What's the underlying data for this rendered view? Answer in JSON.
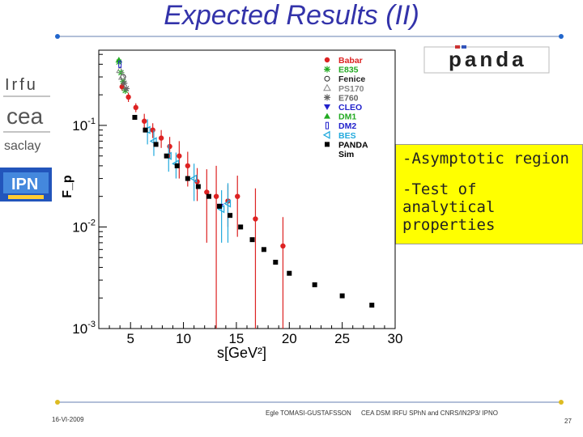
{
  "slide": {
    "title": "Expected Results (II)",
    "footer_date": "16-VI-2009",
    "footer_author": "Egle TOMASI-GUSTAFSSON",
    "footer_affiliation": "CEA DSM IRFU SPhN and CNRS/IN2P3/ IPNO",
    "page_number": "27",
    "accent_color": "#3333aa",
    "rule_color": "#99aacc",
    "dot_color": "#2266cc"
  },
  "logos": {
    "irfu_text": "Irfu",
    "cea_text": "cea",
    "saclay_text": "saclay",
    "ipn_text": "IPN",
    "panda_text": "panda"
  },
  "notes": {
    "line1": "-Asymptotic region",
    "line2": "-Test of analytical properties"
  },
  "chart_data": {
    "type": "scatter",
    "title": "",
    "xlabel": "s[GeV²]",
    "ylabel": "F_p",
    "xlim": [
      2,
      30
    ],
    "ylim": [
      0.001,
      0.55
    ],
    "y_scale": "log",
    "x_ticks": [
      5,
      10,
      15,
      20,
      25,
      30
    ],
    "y_ticks": [
      {
        "value": 0.1,
        "base": "10",
        "exp": "-1"
      },
      {
        "value": 0.01,
        "base": "10",
        "exp": "-2"
      },
      {
        "value": 0.001,
        "base": "10",
        "exp": "-3"
      }
    ],
    "legend_position": "top-right",
    "series": [
      {
        "name": "Babar",
        "color": "#dd2222",
        "marker": "circle-filled",
        "x": [
          4.2,
          4.8,
          5.5,
          6.3,
          7.1,
          7.9,
          8.7,
          9.6,
          10.4,
          11.3,
          12.2,
          13.1,
          14.2,
          15.1,
          16.8,
          19.4
        ],
        "y": [
          0.24,
          0.19,
          0.15,
          0.11,
          0.09,
          0.075,
          0.062,
          0.05,
          0.04,
          0.028,
          0.022,
          0.02,
          0.018,
          0.02,
          0.012,
          0.0065
        ],
        "yerr": [
          0.02,
          0.02,
          0.015,
          0.02,
          0.015,
          0.015,
          0.015,
          0.02,
          0.015,
          0.01,
          0.015,
          0.02,
          0.008,
          0.012,
          0.012,
          0.006
        ]
      },
      {
        "name": "E835",
        "color": "#22aa22",
        "marker": "star",
        "x": [
          3.9,
          4.1,
          4.3,
          4.5
        ],
        "y": [
          0.42,
          0.33,
          0.27,
          0.22
        ]
      },
      {
        "name": "Fenice",
        "color": "#222222",
        "marker": "circle-open",
        "x": [
          4.3
        ],
        "y": [
          0.3
        ]
      },
      {
        "name": "PS170",
        "color": "#888888",
        "marker": "triangle-open",
        "x": [
          4.0,
          4.2
        ],
        "y": [
          0.35,
          0.3
        ]
      },
      {
        "name": "E760",
        "color": "#666666",
        "marker": "star",
        "x": [
          4.4,
          4.6
        ],
        "y": [
          0.26,
          0.23
        ]
      },
      {
        "name": "CLEO",
        "color": "#2222cc",
        "marker": "triangle-down",
        "x": [
          13.5
        ],
        "y": [
          0.016
        ]
      },
      {
        "name": "DM1",
        "color": "#22aa22",
        "marker": "triangle-up",
        "x": [
          3.9
        ],
        "y": [
          0.44
        ]
      },
      {
        "name": "DM2",
        "color": "#2222cc",
        "marker": "bar",
        "x": [
          4.0
        ],
        "y": [
          0.4
        ]
      },
      {
        "name": "BES",
        "color": "#22aadd",
        "marker": "triangle-left",
        "x": [
          6.6,
          7.2,
          8.6,
          9.3,
          11.0,
          13.6,
          14.2
        ],
        "y": [
          0.09,
          0.07,
          0.05,
          0.042,
          0.03,
          0.015,
          0.017
        ],
        "yerr": [
          0.025,
          0.02,
          0.015,
          0.012,
          0.012,
          0.008,
          0.01
        ]
      },
      {
        "name": "PANDA Sim",
        "color": "#000000",
        "marker": "square-filled",
        "x": [
          5.4,
          6.4,
          7.4,
          8.4,
          9.4,
          10.4,
          11.4,
          12.4,
          13.4,
          14.4,
          15.4,
          16.5,
          17.6,
          18.7,
          20.0,
          22.4,
          25.0,
          27.8
        ],
        "y": [
          0.12,
          0.09,
          0.065,
          0.05,
          0.04,
          0.03,
          0.025,
          0.02,
          0.016,
          0.013,
          0.01,
          0.0075,
          0.006,
          0.0045,
          0.0035,
          0.0027,
          0.0021,
          0.0017
        ]
      }
    ]
  }
}
